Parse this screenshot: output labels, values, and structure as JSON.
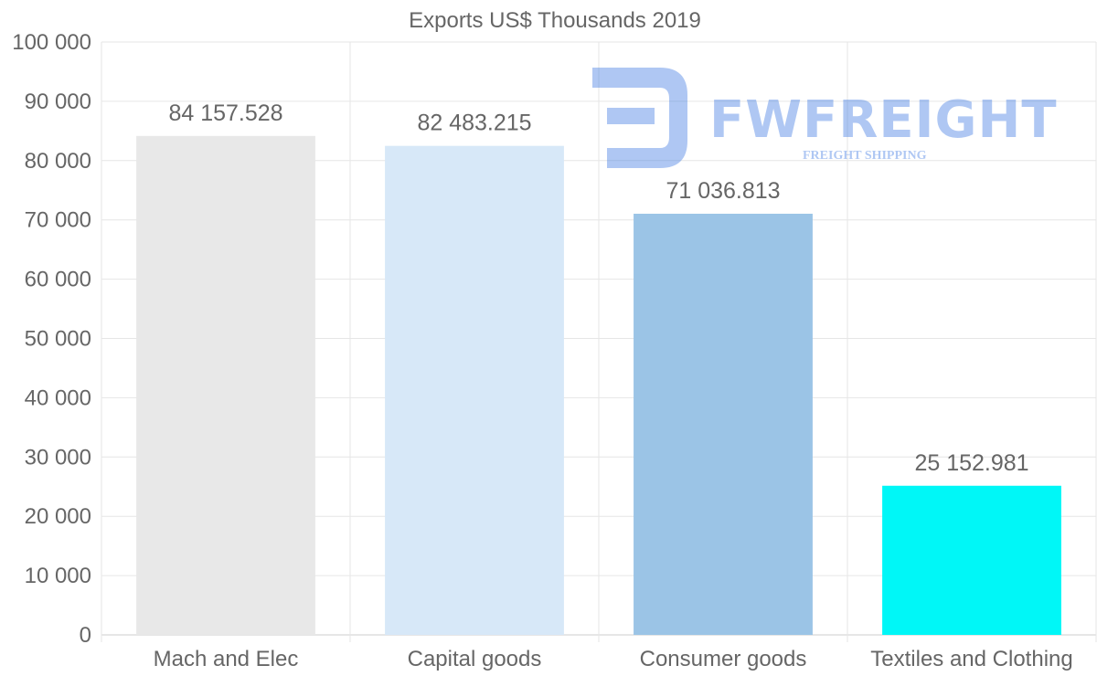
{
  "chart_data": {
    "type": "bar",
    "title": "Exports US$ Thousands 2019",
    "categories": [
      "Mach and Elec",
      "Capital goods",
      "Consumer goods",
      "Textiles and Clothing"
    ],
    "values": [
      84157.528,
      82483.215,
      71036.813,
      25152.981
    ],
    "value_labels": [
      "84 157.528",
      "82 483.215",
      "71 036.813",
      "25 152.981"
    ],
    "bar_colors": [
      "#e8e8e8",
      "#d7e8f8",
      "#9bc4e6",
      "#00f7f7"
    ],
    "ylim": [
      0,
      100000
    ],
    "yticks": [
      0,
      10000,
      20000,
      30000,
      40000,
      50000,
      60000,
      70000,
      80000,
      90000,
      100000
    ],
    "ytick_labels": [
      "0",
      "10 000",
      "20 000",
      "30 000",
      "40 000",
      "50 000",
      "60 000",
      "70 000",
      "80 000",
      "90 000",
      "100 000"
    ],
    "grid": true,
    "xlabel": "",
    "ylabel": ""
  },
  "watermark": {
    "brand": "FWFREIGHT",
    "tagline": "FREIGHT SHIPPING",
    "color": "#2f6fe0"
  }
}
